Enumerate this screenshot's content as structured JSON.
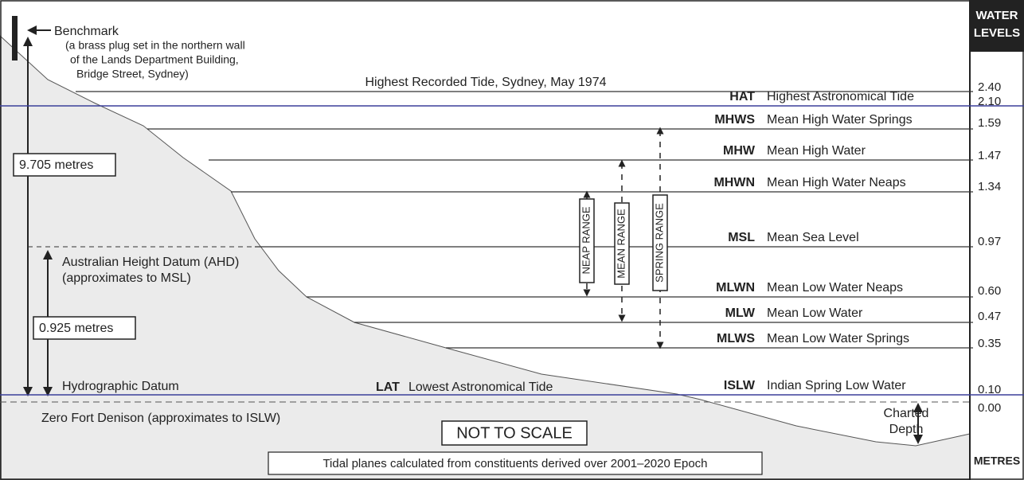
{
  "header": {
    "lines": [
      "WATER",
      "LEVELS"
    ]
  },
  "footer_unit": "METRES",
  "benchmark": {
    "label": "Benchmark",
    "note": [
      "(a brass plug set in the northern wall",
      "of the Lands Department Building,",
      "Bridge Street, Sydney)"
    ]
  },
  "distances": {
    "benchmark_to_datum": "9.705 metres",
    "ahd_to_datum": "0.925 metres"
  },
  "ahd": [
    "Australian Height Datum (AHD)",
    "(approximates to MSL)"
  ],
  "hydrographic_datum": "Hydrographic Datum",
  "highest_recorded": {
    "label": "Highest Recorded Tide, Sydney, May 1974",
    "value": "2.40"
  },
  "levels": [
    {
      "abbr": "HAT",
      "name": "Highest Astronomical Tide",
      "value": "2.10"
    },
    {
      "abbr": "MHWS",
      "name": "Mean High Water Springs",
      "value": "1.59"
    },
    {
      "abbr": "MHW",
      "name": "Mean High Water",
      "value": "1.47"
    },
    {
      "abbr": "MHWN",
      "name": "Mean High Water Neaps",
      "value": "1.34"
    },
    {
      "abbr": "MSL",
      "name": "Mean Sea Level",
      "value": "0.97"
    },
    {
      "abbr": "MLWN",
      "name": "Mean Low Water Neaps",
      "value": "0.60"
    },
    {
      "abbr": "MLW",
      "name": "Mean Low Water",
      "value": "0.47"
    },
    {
      "abbr": "MLWS",
      "name": "Mean Low Water Springs",
      "value": "0.35"
    },
    {
      "abbr": "ISLW",
      "name": "Indian Spring Low Water",
      "value": "0.10"
    }
  ],
  "lat": {
    "abbr": "LAT",
    "name": "Lowest Astronomical Tide"
  },
  "zero": {
    "label": "Zero Fort Denison (approximates to ISLW)",
    "value": "0.00"
  },
  "ranges": [
    "NEAP RANGE",
    "MEAN RANGE",
    "SPRING RANGE"
  ],
  "charted_depth": [
    "Charted",
    "Depth"
  ],
  "not_to_scale": "NOT TO SCALE",
  "note": "Tidal planes calculated from constituents derived over 2001–2020 Epoch"
}
